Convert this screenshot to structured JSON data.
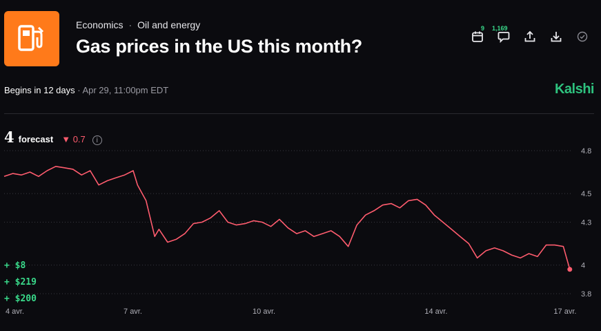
{
  "header": {
    "category": "Economics",
    "subcategory": "Oil and energy",
    "title": "Gas prices in the US this month?",
    "thumb_icon": "gas-pump-icon",
    "thumb_color": "#ff7a1a"
  },
  "toolbar": {
    "calendar_count": "9",
    "comments_count": "1,169",
    "icons": [
      "calendar-icon",
      "comment-icon",
      "share-icon",
      "download-icon",
      "check-circle-icon"
    ]
  },
  "meta": {
    "begins": "Begins in 12 days",
    "separator": " · ",
    "datetime": "Apr 29, 11:00pm EDT"
  },
  "brand": "Kalshi",
  "forecast": {
    "value": "4",
    "label": "forecast",
    "change": "0.7",
    "change_color": "#ff5c6e"
  },
  "gains": [
    "+ $8",
    "+ $219",
    "+ $200"
  ],
  "chart_data": {
    "type": "line",
    "y_ticks": [
      "4.8",
      "4.5",
      "4.3",
      "4",
      "3.8"
    ],
    "y_tick_values": [
      4.8,
      4.5,
      4.3,
      4.0,
      3.8
    ],
    "x_ticks": [
      "4 avr.",
      "7 avr.",
      "10 avr.",
      "14 avr.",
      "17 avr."
    ],
    "x_tick_values": [
      4.0,
      7.0,
      10.0,
      14.0,
      17.0
    ],
    "ylim": [
      3.78,
      4.82
    ],
    "line_color": "#ff5c6e",
    "grid": "dotted",
    "series": [
      {
        "x": [
          4.0,
          4.2,
          4.4,
          4.6,
          4.8,
          5.0,
          5.2,
          5.4,
          5.6,
          5.8,
          6.0,
          6.2,
          6.4,
          6.6,
          6.8,
          7.0,
          7.1,
          7.3,
          7.5,
          7.6,
          7.8,
          8.0,
          8.2,
          8.4,
          8.6,
          8.8,
          9.0,
          9.2,
          9.4,
          9.6,
          9.8,
          10.0,
          10.2,
          10.4,
          10.6,
          10.8,
          11.0,
          11.2,
          11.4,
          11.6,
          11.8,
          12.0,
          12.2,
          12.4,
          12.6,
          12.8,
          13.0,
          13.2,
          13.4,
          13.6,
          13.8,
          14.0,
          14.2,
          14.4,
          14.6,
          14.8,
          15.0,
          15.2,
          15.4,
          15.6,
          15.8,
          16.0,
          16.2,
          16.4,
          16.6,
          16.8,
          17.0,
          17.15
        ],
        "y": [
          4.62,
          4.64,
          4.63,
          4.65,
          4.62,
          4.66,
          4.69,
          4.68,
          4.67,
          4.63,
          4.66,
          4.56,
          4.59,
          4.61,
          4.63,
          4.66,
          4.56,
          4.45,
          4.2,
          4.25,
          4.16,
          4.18,
          4.22,
          4.29,
          4.3,
          4.33,
          4.38,
          4.3,
          4.28,
          4.29,
          4.31,
          4.3,
          4.27,
          4.32,
          4.26,
          4.22,
          4.24,
          4.2,
          4.22,
          4.24,
          4.2,
          4.13,
          4.28,
          4.35,
          4.38,
          4.42,
          4.43,
          4.4,
          4.45,
          4.46,
          4.42,
          4.35,
          4.3,
          4.25,
          4.2,
          4.15,
          4.05,
          4.1,
          4.12,
          4.1,
          4.07,
          4.05,
          4.08,
          4.06,
          4.14,
          4.14,
          4.13,
          3.97
        ]
      }
    ]
  }
}
